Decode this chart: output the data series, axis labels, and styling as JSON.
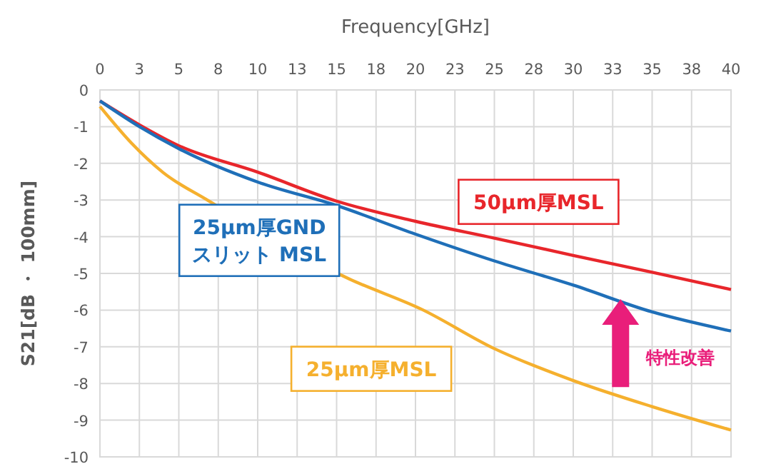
{
  "chart_data": {
    "type": "line",
    "xlabel": "Frequency[GHz]",
    "ylabel": "S21[dB ・ 100mm]",
    "xlim": [
      0,
      40
    ],
    "xticks": [
      0,
      {
        "value": 2.5,
        "label": "3"
      },
      5,
      {
        "value": 7.5,
        "label": "8"
      },
      10,
      {
        "value": 12.5,
        "label": "13"
      },
      15,
      {
        "value": 17.5,
        "label": "18"
      },
      20,
      {
        "value": 22.5,
        "label": "23"
      },
      25,
      {
        "value": 27.5,
        "label": "28"
      },
      30,
      {
        "value": 32.5,
        "label": "33"
      },
      35,
      {
        "value": 37.5,
        "label": "38"
      },
      40
    ],
    "ylim": [
      -10,
      0
    ],
    "yticks": [
      0,
      -1,
      -2,
      -3,
      -4,
      -5,
      -6,
      -7,
      -8,
      -9,
      -10
    ],
    "grid": true,
    "marker": "none",
    "line_style": "solid",
    "series": [
      {
        "name": "50µm厚MSL",
        "color": "#e8262b",
        "x": [
          0,
          2.5,
          5,
          10,
          15,
          20,
          25,
          30,
          35,
          40
        ],
        "values": [
          -0.3,
          -0.95,
          -1.52,
          -2.24,
          -3.03,
          -3.58,
          -4.04,
          -4.51,
          -4.97,
          -5.44
        ]
      },
      {
        "name": "25µm厚GND スリット MSL",
        "color": "#1f6fb8",
        "x": [
          0,
          2.5,
          5,
          10,
          15,
          20,
          25,
          30,
          35,
          40
        ],
        "values": [
          -0.3,
          -1.0,
          -1.6,
          -2.51,
          -3.15,
          -3.93,
          -4.66,
          -5.32,
          -6.05,
          -6.57
        ]
      },
      {
        "name": "25µm厚MSL",
        "color": "#f5b02e",
        "x": [
          0,
          2,
          4,
          6.8,
          15.8,
          20.4,
          25,
          30,
          35,
          40
        ],
        "values": [
          -0.45,
          -1.45,
          -2.25,
          -3.0,
          -5.15,
          -5.98,
          -7.05,
          -7.92,
          -8.63,
          -9.27
        ]
      }
    ],
    "annotations": [
      "特性改善"
    ]
  }
}
